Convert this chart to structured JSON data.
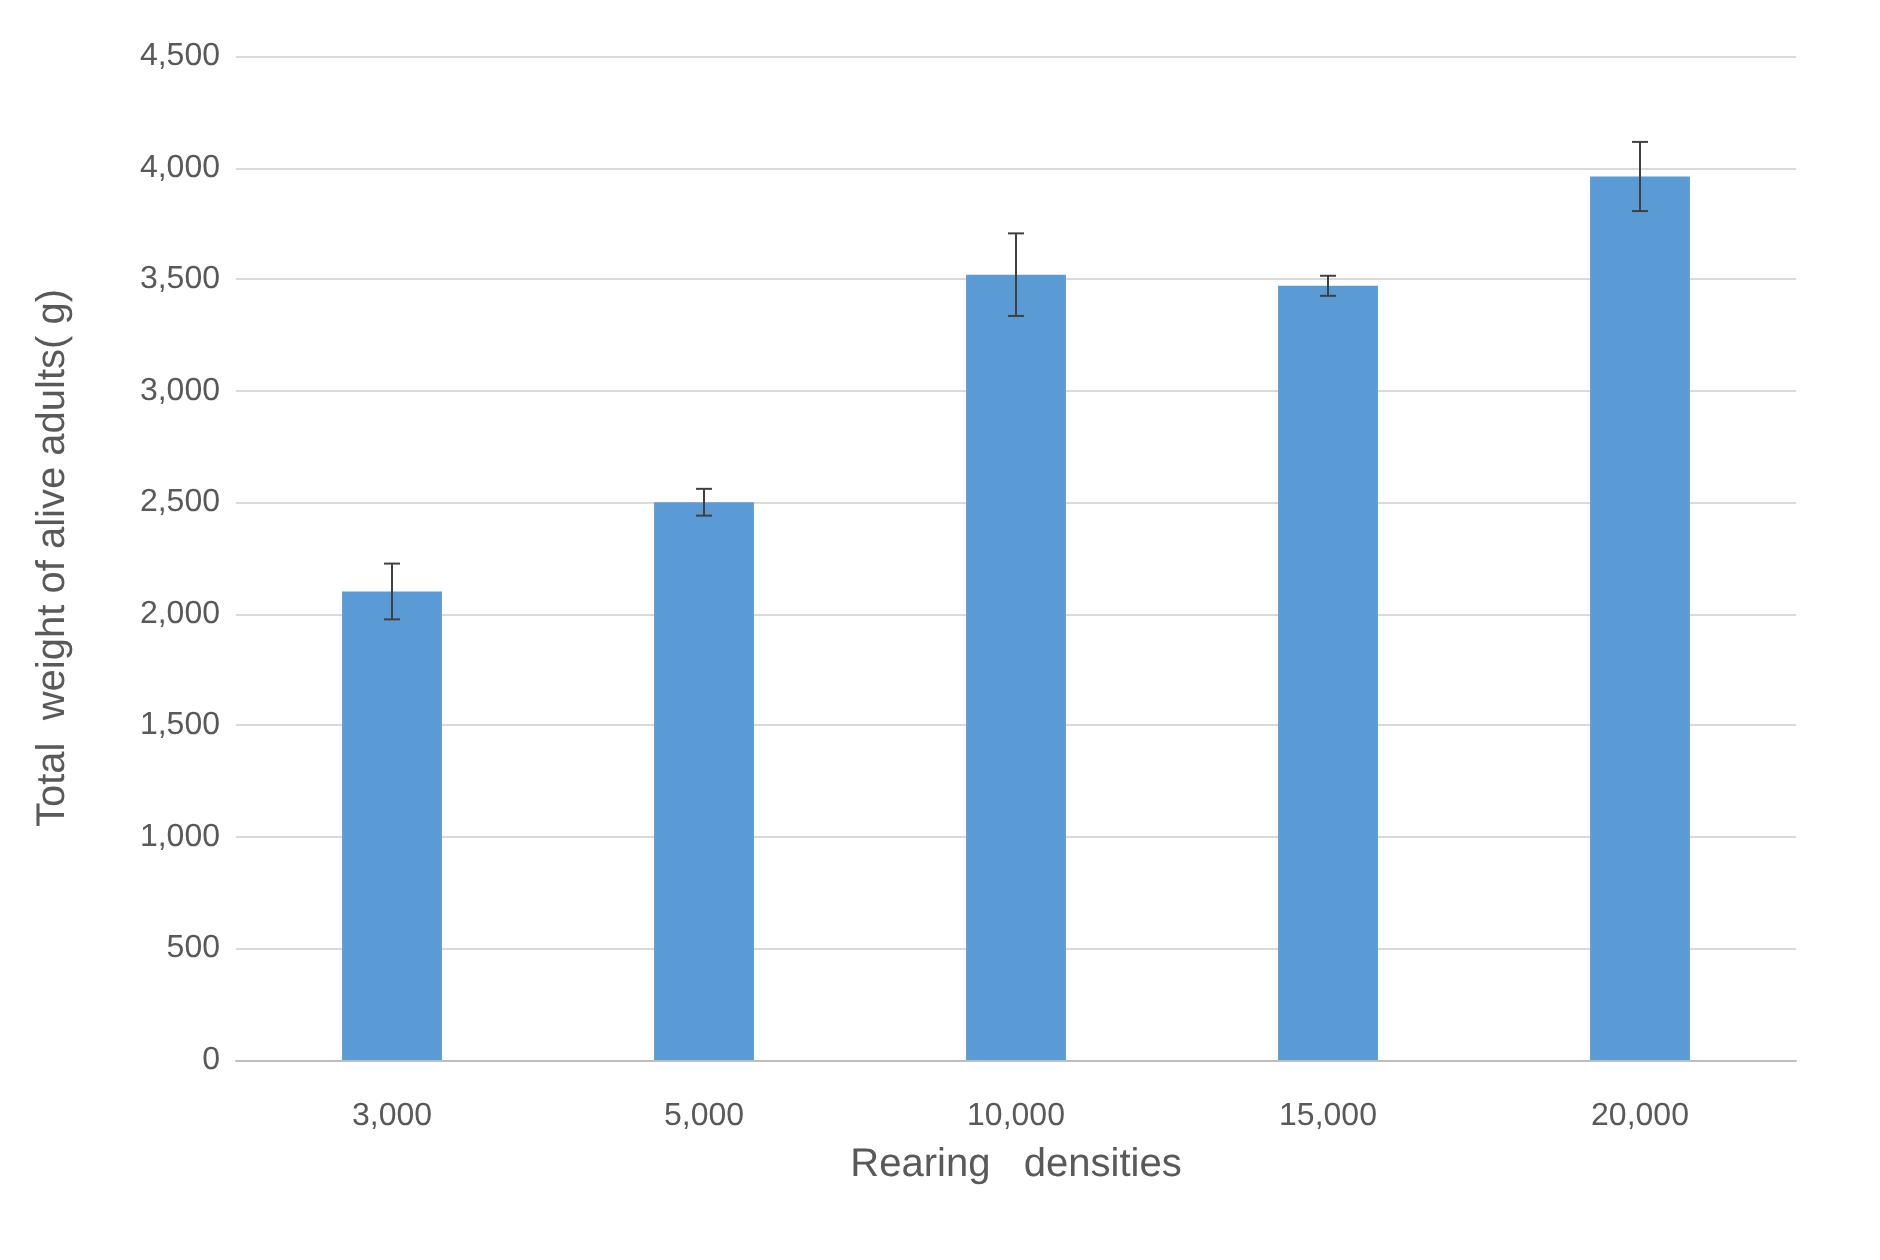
{
  "chart_data": {
    "type": "bar",
    "xlabel": "Rearing   densities",
    "ylabel": "Total  weight of alive adults( g)",
    "categories": [
      "3,000",
      "5,000",
      "10,000",
      "15,000",
      "20,000"
    ],
    "values": [
      2100,
      2500,
      3520,
      3470,
      3960
    ],
    "errors": [
      125,
      60,
      185,
      45,
      155
    ],
    "color": "#5b9bd5",
    "ylim": [
      0,
      4500
    ],
    "yticks": [
      {
        "value": 0,
        "label": "0"
      },
      {
        "value": 500,
        "label": "500"
      },
      {
        "value": 1000,
        "label": "1,000"
      },
      {
        "value": 1500,
        "label": "1,500"
      },
      {
        "value": 2000,
        "label": "2,000"
      },
      {
        "value": 2500,
        "label": "2,500"
      },
      {
        "value": 3000,
        "label": "3,000"
      },
      {
        "value": 3500,
        "label": "3,500"
      },
      {
        "value": 4000,
        "label": "4,000"
      },
      {
        "value": 4500,
        "label": "4,500"
      }
    ],
    "grid": "y"
  }
}
